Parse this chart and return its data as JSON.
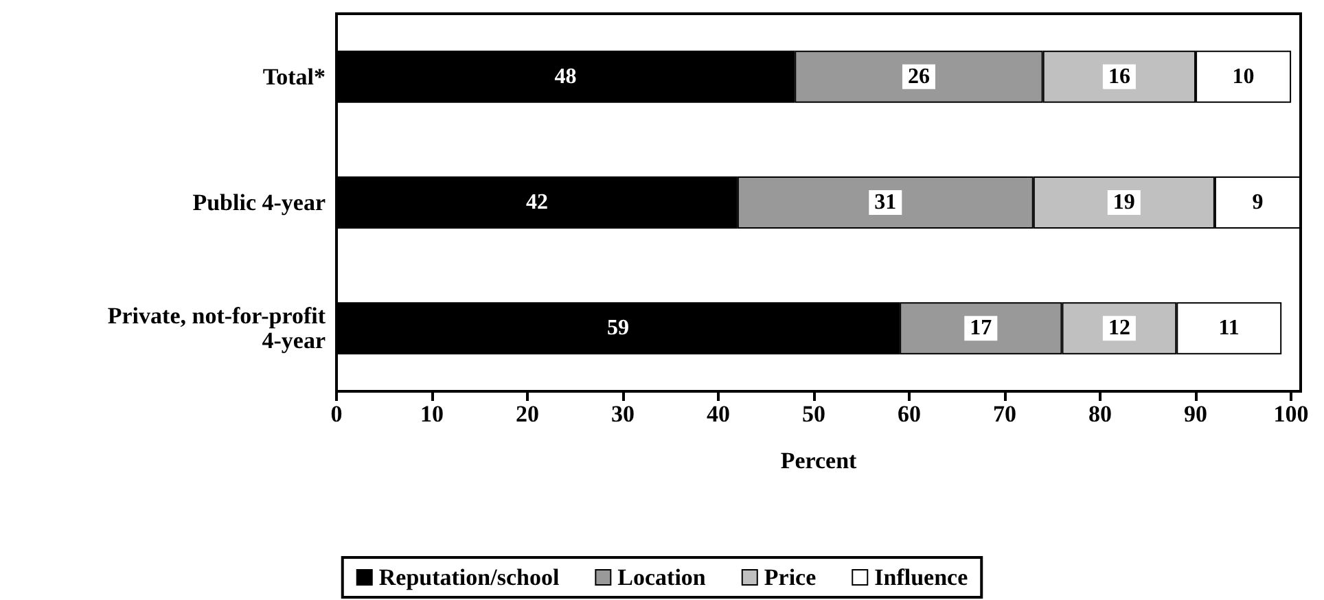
{
  "chart_data": {
    "type": "bar",
    "orientation": "horizontal",
    "stacked": true,
    "xlabel": "Percent",
    "categories": [
      "Total*",
      "Public 4-year",
      "Private, not-for-profit\n4-year"
    ],
    "series": [
      {
        "name": "Reputation/school",
        "color": "#000000",
        "values": [
          48,
          42,
          59
        ]
      },
      {
        "name": "Location",
        "color": "#999999",
        "values": [
          26,
          31,
          17
        ]
      },
      {
        "name": "Price",
        "color": "#c0c0c0",
        "values": [
          16,
          19,
          12
        ]
      },
      {
        "name": "Influence",
        "color": "#ffffff",
        "values": [
          10,
          9,
          11
        ]
      }
    ],
    "xlim": [
      0,
      101
    ],
    "xticks": [
      0,
      10,
      20,
      30,
      40,
      50,
      60,
      70,
      80,
      90,
      100
    ],
    "data_labels": true,
    "grid": false,
    "legend": "bottom"
  }
}
